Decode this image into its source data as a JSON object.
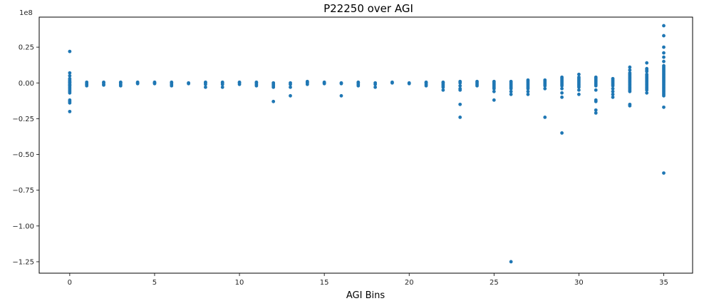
{
  "chart_data": {
    "type": "scatter",
    "title": "P22250 over AGI",
    "xlabel": "AGI Bins",
    "ylabel": "",
    "y_offset_label": "1e8",
    "xlim": [
      -1.8,
      36.7
    ],
    "ylim": [
      -1.33,
      0.46
    ],
    "xticks": [
      0,
      5,
      10,
      15,
      20,
      25,
      30,
      35
    ],
    "yticks": [
      -1.25,
      -1.0,
      -0.75,
      -0.5,
      -0.25,
      0.0,
      0.25
    ],
    "ytick_labels": [
      "−1.25",
      "−1.00",
      "−0.75",
      "−0.50",
      "−0.25",
      "0.00",
      "0.25"
    ],
    "grid": false,
    "marker_color": "#1f77b4",
    "series": [
      {
        "x": [
          0,
          0,
          0,
          0,
          0,
          0,
          0,
          0,
          0,
          0,
          0,
          0,
          0,
          0,
          0,
          0,
          0,
          0,
          0,
          0,
          1,
          1,
          1,
          1,
          2,
          2,
          2,
          2,
          3,
          3,
          3,
          3,
          4,
          4,
          4,
          5,
          5,
          5,
          6,
          6,
          6,
          6,
          7,
          7,
          8,
          8,
          8,
          8,
          9,
          9,
          9,
          9,
          10,
          10,
          10,
          11,
          11,
          11,
          11,
          12,
          12,
          12,
          12,
          12,
          13,
          13,
          13,
          13,
          14,
          14,
          14,
          14,
          15,
          15,
          15,
          16,
          16,
          16,
          17,
          17,
          17,
          17,
          18,
          18,
          18,
          19,
          19,
          20,
          20,
          21,
          21,
          21,
          21,
          22,
          22,
          22,
          22,
          22,
          22,
          23,
          23,
          23,
          23,
          23,
          23,
          23,
          24,
          24,
          24,
          24,
          25,
          25,
          25,
          25,
          25,
          25,
          25,
          25,
          26,
          26,
          26,
          26,
          26,
          26,
          26,
          26,
          26,
          27,
          27,
          27,
          27,
          27,
          27,
          27,
          27,
          27,
          28,
          28,
          28,
          28,
          28,
          28,
          28,
          29,
          29,
          29,
          29,
          29,
          29,
          29,
          29,
          29,
          29,
          29,
          30,
          30,
          30,
          30,
          30,
          30,
          30,
          30,
          30,
          30,
          30,
          31,
          31,
          31,
          31,
          31,
          31,
          31,
          31,
          31,
          31,
          31,
          31,
          32,
          32,
          32,
          32,
          32,
          32,
          32,
          32,
          32,
          32,
          33,
          33,
          33,
          33,
          33,
          33,
          33,
          33,
          33,
          33,
          33,
          33,
          33,
          33,
          33,
          33,
          33,
          33,
          34,
          34,
          34,
          34,
          34,
          34,
          34,
          34,
          34,
          34,
          34,
          34,
          34,
          34,
          34,
          34,
          34,
          35,
          35,
          35,
          35,
          35,
          35,
          35,
          35,
          35,
          35,
          35,
          35,
          35,
          35,
          35,
          35,
          35,
          35,
          35,
          35,
          35,
          35,
          35,
          35,
          35,
          35,
          35,
          35,
          35,
          35
        ],
        "y": [
          0.22,
          0.07,
          0.05,
          0.03,
          0.02,
          0.01,
          0.0,
          -0.01,
          -0.02,
          -0.03,
          -0.04,
          -0.05,
          -0.06,
          -0.07,
          -0.12,
          -0.13,
          -0.14,
          -0.2,
          0.005,
          -0.015,
          -0.01,
          -0.005,
          0.005,
          -0.02,
          -0.01,
          0.0,
          0.005,
          -0.015,
          -0.02,
          -0.01,
          0.0,
          0.005,
          0.005,
          0.0,
          -0.005,
          0.005,
          0.0,
          -0.005,
          0.0,
          -0.01,
          0.005,
          -0.02,
          0.0,
          -0.005,
          0.0,
          -0.01,
          0.005,
          -0.03,
          0.0,
          -0.01,
          0.005,
          -0.03,
          0.005,
          0.0,
          -0.01,
          0.0,
          -0.01,
          -0.02,
          0.005,
          0.0,
          -0.01,
          -0.02,
          -0.03,
          -0.13,
          0.0,
          -0.01,
          -0.03,
          -0.09,
          0.01,
          0.005,
          0.0,
          -0.01,
          0.005,
          0.0,
          -0.005,
          0.0,
          -0.005,
          -0.09,
          0.005,
          0.0,
          -0.01,
          -0.02,
          0.0,
          -0.01,
          -0.03,
          0.0,
          0.005,
          0.0,
          -0.005,
          0.0,
          -0.01,
          -0.02,
          0.005,
          0.0,
          -0.01,
          -0.02,
          -0.03,
          -0.05,
          0.005,
          0.0,
          -0.02,
          -0.04,
          -0.05,
          -0.15,
          -0.24,
          0.01,
          0.0,
          -0.01,
          0.01,
          -0.02,
          0.01,
          0.0,
          -0.01,
          -0.02,
          -0.03,
          -0.04,
          -0.06,
          -0.12,
          0.01,
          0.0,
          -0.01,
          -0.02,
          -0.03,
          -0.04,
          -0.06,
          -0.08,
          -1.25,
          0.02,
          0.01,
          0.0,
          -0.01,
          -0.02,
          -0.03,
          -0.04,
          -0.06,
          -0.08,
          0.02,
          0.01,
          0.0,
          -0.01,
          -0.02,
          -0.04,
          -0.24,
          0.04,
          0.03,
          0.02,
          0.01,
          0.0,
          -0.01,
          -0.02,
          -0.04,
          -0.07,
          -0.1,
          -0.35,
          0.06,
          0.04,
          0.03,
          0.02,
          0.01,
          0.0,
          -0.01,
          -0.02,
          -0.03,
          -0.05,
          -0.08,
          0.04,
          0.03,
          0.02,
          0.01,
          0.0,
          -0.01,
          -0.02,
          -0.05,
          -0.12,
          -0.13,
          -0.19,
          -0.21,
          0.03,
          0.02,
          0.01,
          0.0,
          -0.01,
          -0.02,
          -0.04,
          -0.06,
          -0.08,
          -0.1,
          0.11,
          0.09,
          0.07,
          0.06,
          0.05,
          0.04,
          0.03,
          0.02,
          0.01,
          0.0,
          -0.01,
          -0.02,
          -0.03,
          -0.04,
          -0.05,
          -0.06,
          -0.15,
          -0.16,
          0.14,
          0.1,
          0.09,
          0.08,
          0.06,
          0.05,
          0.04,
          0.03,
          0.02,
          0.01,
          0.0,
          -0.01,
          -0.02,
          -0.03,
          -0.04,
          -0.05,
          -0.07,
          0.4,
          0.33,
          0.25,
          0.21,
          0.18,
          0.15,
          0.12,
          0.1,
          0.09,
          0.08,
          0.07,
          0.06,
          0.05,
          0.04,
          0.03,
          0.02,
          0.01,
          0.0,
          -0.01,
          -0.02,
          -0.03,
          -0.04,
          -0.05,
          -0.06,
          -0.07,
          -0.08,
          -0.09,
          -0.17,
          -0.63,
          0.11
        ]
      }
    ]
  }
}
